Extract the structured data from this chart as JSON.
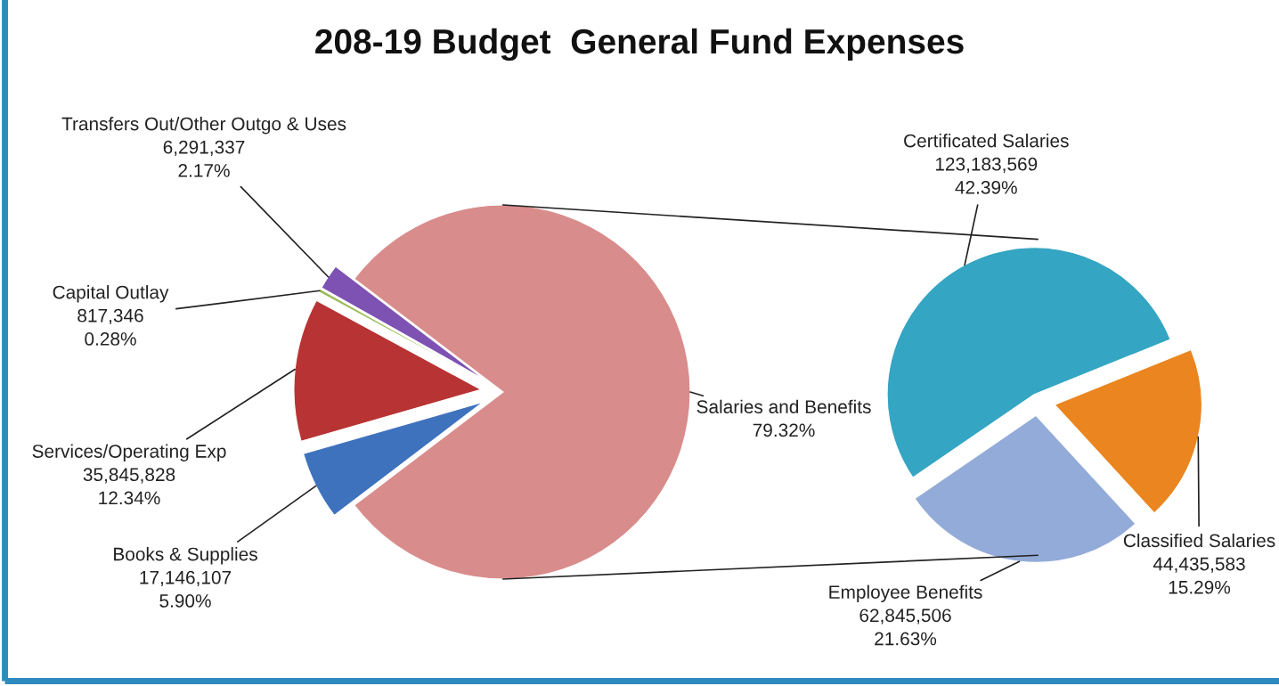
{
  "chart_data": [
    {
      "type": "pie",
      "title": "208-19 Budget  General Fund Expenses",
      "categories": [
        "Salaries and Benefits",
        "Transfers Out/Other Outgo & Uses",
        "Capital Outlay",
        "Services/Operating Exp",
        "Books & Supplies"
      ],
      "values": [
        79.32,
        2.17,
        0.28,
        12.34,
        5.9
      ],
      "value_labels": [
        "79.32%",
        "6,291,337\n2.17%",
        "817,346\n0.28%",
        "35,845,828\n12.34%",
        "17,146,107\n5.90%"
      ],
      "colors": [
        "#d98c8c",
        "#7d52b3",
        "#9bbb59",
        "#b83333",
        "#3f72bd"
      ]
    },
    {
      "type": "pie",
      "categories": [
        "Certificated Salaries",
        "Employee Benefits",
        "Classified Salaries"
      ],
      "values": [
        42.39,
        21.63,
        15.29
      ],
      "value_labels": [
        "123,183,569\n42.39%",
        "62,845,506\n21.63%",
        "44,435,583\n15.29%"
      ],
      "colors": [
        "#34a5c2",
        "#93abd8",
        "#ea851f"
      ]
    }
  ]
}
